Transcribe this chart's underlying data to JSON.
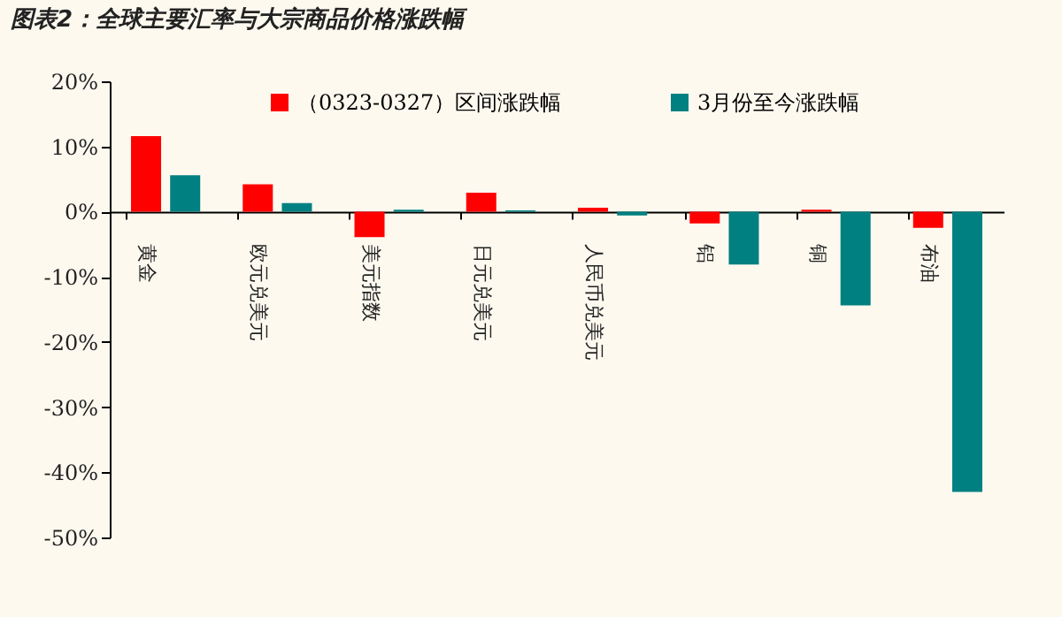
{
  "chart_data": {
    "type": "bar",
    "title": "图表2：全球主要汇率与大宗商品价格涨跌幅",
    "categories": [
      "黄金",
      "欧元兑美元",
      "美元指数",
      "日元兑美元",
      "人民币兑美元",
      "铝",
      "铜",
      "布油"
    ],
    "series": [
      {
        "name": "（0323-0327）区间涨跌幅",
        "color": "#ff0000",
        "values": [
          11.6,
          4.2,
          -3.9,
          2.9,
          0.6,
          -1.8,
          0.3,
          -2.5
        ]
      },
      {
        "name": "3月份至今涨跌幅",
        "color": "#008080",
        "values": [
          5.6,
          1.3,
          0.3,
          0.2,
          -0.6,
          -8.1,
          -14.4,
          -43
        ]
      }
    ],
    "ylim": [
      -50,
      20
    ],
    "yticks": [
      {
        "value": -50,
        "label": "-50%"
      },
      {
        "value": -40,
        "label": "-40%"
      },
      {
        "value": -30,
        "label": "-30%"
      },
      {
        "value": -20,
        "label": "-20%"
      },
      {
        "value": -10,
        "label": "-10%"
      },
      {
        "value": 0,
        "label": "0%"
      },
      {
        "value": 10,
        "label": "10%"
      },
      {
        "value": 20,
        "label": "20%"
      }
    ],
    "legend": "top",
    "grid": false
  }
}
